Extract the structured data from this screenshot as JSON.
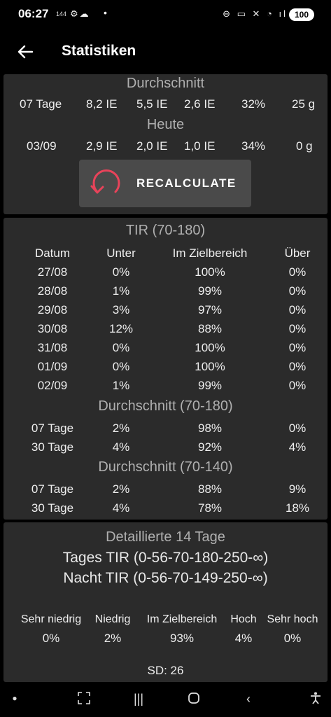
{
  "status_bar": {
    "time": "06:27",
    "refresh_rate": "144",
    "battery": "100"
  },
  "app_bar": {
    "title": "Statistiken"
  },
  "summary": {
    "heading_avg": "Durchschnitt",
    "avg_row": [
      "07 Tage",
      "8,2 IE",
      "5,5 IE",
      "2,6 IE",
      "32%",
      "25 g"
    ],
    "heading_today": "Heute",
    "today_row": [
      "03/09",
      "2,9 IE",
      "2,0 IE",
      "1,0 IE",
      "34%",
      "0 g"
    ],
    "recalculate_label": "RECALCULATE",
    "accent_color": "#e8435a"
  },
  "tir": {
    "heading": "TIR (70-180)",
    "columns": [
      "Datum",
      "Unter",
      "Im Zielbereich",
      "Über"
    ],
    "rows": [
      [
        "27/08",
        "0%",
        "100%",
        "0%"
      ],
      [
        "28/08",
        "1%",
        "99%",
        "0%"
      ],
      [
        "29/08",
        "3%",
        "97%",
        "0%"
      ],
      [
        "30/08",
        "12%",
        "88%",
        "0%"
      ],
      [
        "31/08",
        "0%",
        "100%",
        "0%"
      ],
      [
        "01/09",
        "0%",
        "100%",
        "0%"
      ],
      [
        "02/09",
        "1%",
        "99%",
        "0%"
      ]
    ],
    "avg_180_heading": "Durchschnitt (70-180)",
    "avg_180_rows": [
      [
        "07 Tage",
        "2%",
        "98%",
        "0%"
      ],
      [
        "30 Tage",
        "4%",
        "92%",
        "4%"
      ]
    ],
    "avg_140_heading": "Durchschnitt (70-140)",
    "avg_140_rows": [
      [
        "07 Tage",
        "2%",
        "88%",
        "9%"
      ],
      [
        "30 Tage",
        "4%",
        "78%",
        "18%"
      ]
    ]
  },
  "detailed": {
    "heading": "Detaillierte 14 Tage",
    "day_tir": "Tages TIR (0-56-70-180-250-∞)",
    "night_tir": "Nacht TIR (0-56-70-149-250-∞)",
    "columns": [
      "Sehr niedrig",
      "Niedrig",
      "Im Zielbereich",
      "Hoch",
      "Sehr hoch"
    ],
    "values": [
      "0%",
      "2%",
      "93%",
      "4%",
      "0%"
    ],
    "sd": "SD: 26"
  }
}
